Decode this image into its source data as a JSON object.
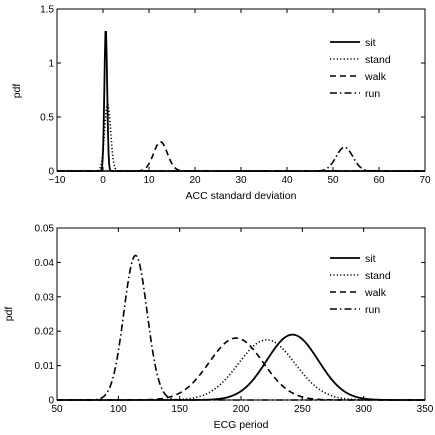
{
  "chart_data": [
    {
      "type": "line",
      "xlabel": "ACC standard deviation",
      "ylabel": "pdf",
      "xlim": [
        -10,
        70
      ],
      "ylim": [
        0,
        1.5
      ],
      "xticks": [
        -10,
        0,
        10,
        20,
        30,
        40,
        50,
        60,
        70
      ],
      "xtick_labels": [
        "−10",
        "0",
        "10",
        "20",
        "30",
        "40",
        "50",
        "60",
        "70"
      ],
      "yticks": [
        0,
        0.5,
        1,
        1.5
      ],
      "ytick_labels": [
        "0",
        "0.5",
        "1",
        "1.5"
      ],
      "grid": false,
      "legend": "top-right",
      "series": [
        {
          "name": "sit",
          "style": "solid",
          "dist": "gaussian",
          "mean": 0.6,
          "sd": 0.3,
          "peak": 1.32
        },
        {
          "name": "stand",
          "style": "dotted",
          "dist": "gaussian",
          "mean": 1.0,
          "sd": 0.65,
          "peak": 0.62
        },
        {
          "name": "walk",
          "style": "dashed",
          "dist": "gaussian",
          "mean": 12.5,
          "sd": 1.5,
          "peak": 0.27
        },
        {
          "name": "run",
          "style": "dashdot",
          "dist": "gaussian",
          "mean": 52.5,
          "sd": 1.8,
          "peak": 0.22
        }
      ]
    },
    {
      "type": "line",
      "xlabel": "ECG period",
      "ylabel": "pdf",
      "xlim": [
        50,
        350
      ],
      "ylim": [
        0,
        0.05
      ],
      "xticks": [
        50,
        100,
        150,
        200,
        250,
        300,
        350
      ],
      "xtick_labels": [
        "50",
        "100",
        "150",
        "200",
        "250",
        "300",
        "350"
      ],
      "yticks": [
        0,
        0.01,
        0.02,
        0.03,
        0.04,
        0.05
      ],
      "ytick_labels": [
        "0",
        "0.01",
        "0.02",
        "0.03",
        "0.04",
        "0.05"
      ],
      "grid": false,
      "legend": "top-right",
      "series": [
        {
          "name": "sit",
          "style": "solid",
          "dist": "gaussian",
          "mean": 242,
          "sd": 21,
          "peak": 0.019
        },
        {
          "name": "stand",
          "style": "dotted",
          "dist": "gaussian",
          "mean": 221,
          "sd": 23,
          "peak": 0.0175
        },
        {
          "name": "walk",
          "style": "dashed",
          "dist": "gaussian",
          "mean": 196,
          "sd": 22,
          "peak": 0.018
        },
        {
          "name": "run",
          "style": "dashdot",
          "dist": "gaussian",
          "mean": 114,
          "sd": 9.5,
          "peak": 0.042
        }
      ]
    }
  ]
}
